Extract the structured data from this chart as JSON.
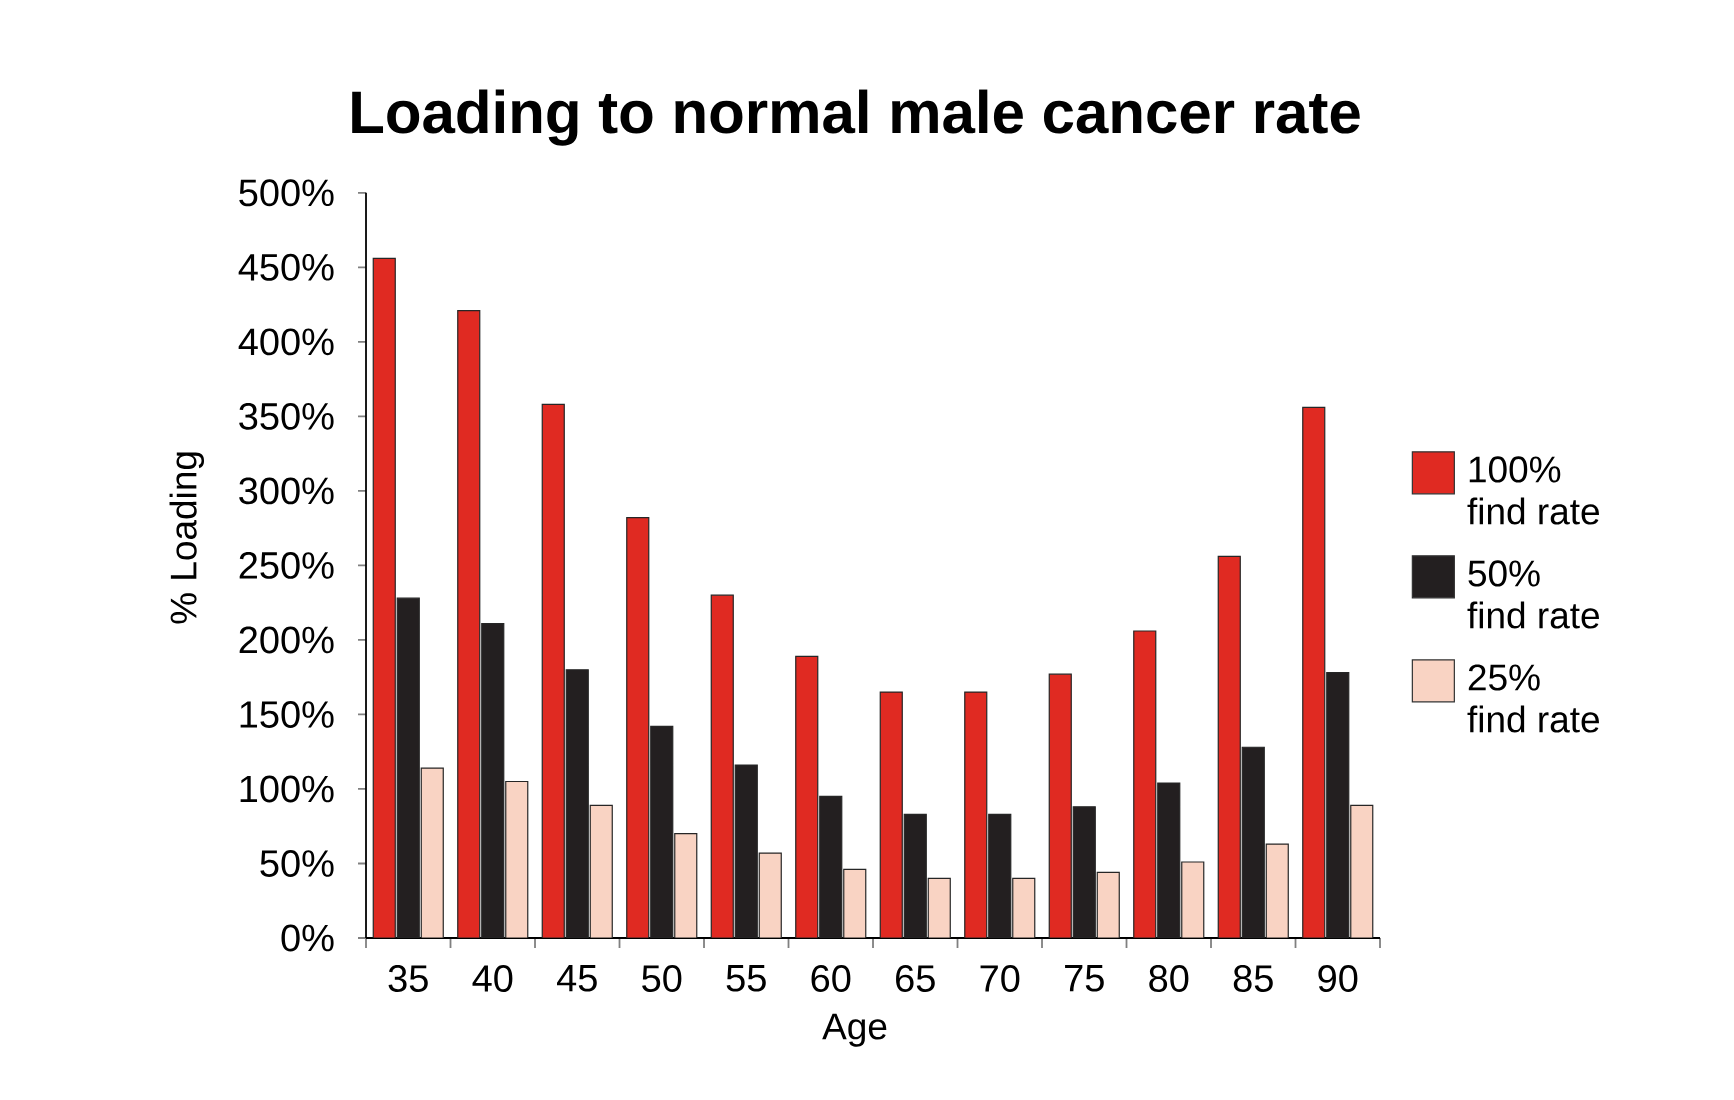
{
  "chart_data": {
    "type": "bar",
    "title": "Loading to normal male cancer rate",
    "xlabel": "Age",
    "ylabel": "% Loading",
    "categories": [
      "35",
      "40",
      "45",
      "50",
      "55",
      "60",
      "65",
      "70",
      "75",
      "80",
      "85",
      "90"
    ],
    "series": [
      {
        "name": "100% find rate",
        "color": "#e02a22",
        "values": [
          456,
          421,
          358,
          282,
          230,
          189,
          165,
          165,
          177,
          206,
          256,
          356
        ]
      },
      {
        "name": "50% find rate",
        "color": "#231f20",
        "values": [
          228,
          211,
          180,
          142,
          116,
          95,
          83,
          83,
          88,
          104,
          128,
          178
        ]
      },
      {
        "name": "25% find rate",
        "color": "#f9d3c3",
        "values": [
          114,
          105,
          89,
          70,
          57,
          46,
          40,
          40,
          44,
          51,
          63,
          89
        ]
      }
    ],
    "ylim": [
      0,
      500
    ],
    "yticks": [
      {
        "value": 0,
        "label": "0%"
      },
      {
        "value": 50,
        "label": "50%"
      },
      {
        "value": 100,
        "label": "100%"
      },
      {
        "value": 150,
        "label": "150%"
      },
      {
        "value": 200,
        "label": "200%"
      },
      {
        "value": 250,
        "label": "250%"
      },
      {
        "value": 300,
        "label": "300%"
      },
      {
        "value": 350,
        "label": "350%"
      },
      {
        "value": 400,
        "label": "400%"
      },
      {
        "value": 450,
        "label": "450%"
      },
      {
        "value": 500,
        "label": "500%"
      }
    ],
    "legend": "right"
  }
}
